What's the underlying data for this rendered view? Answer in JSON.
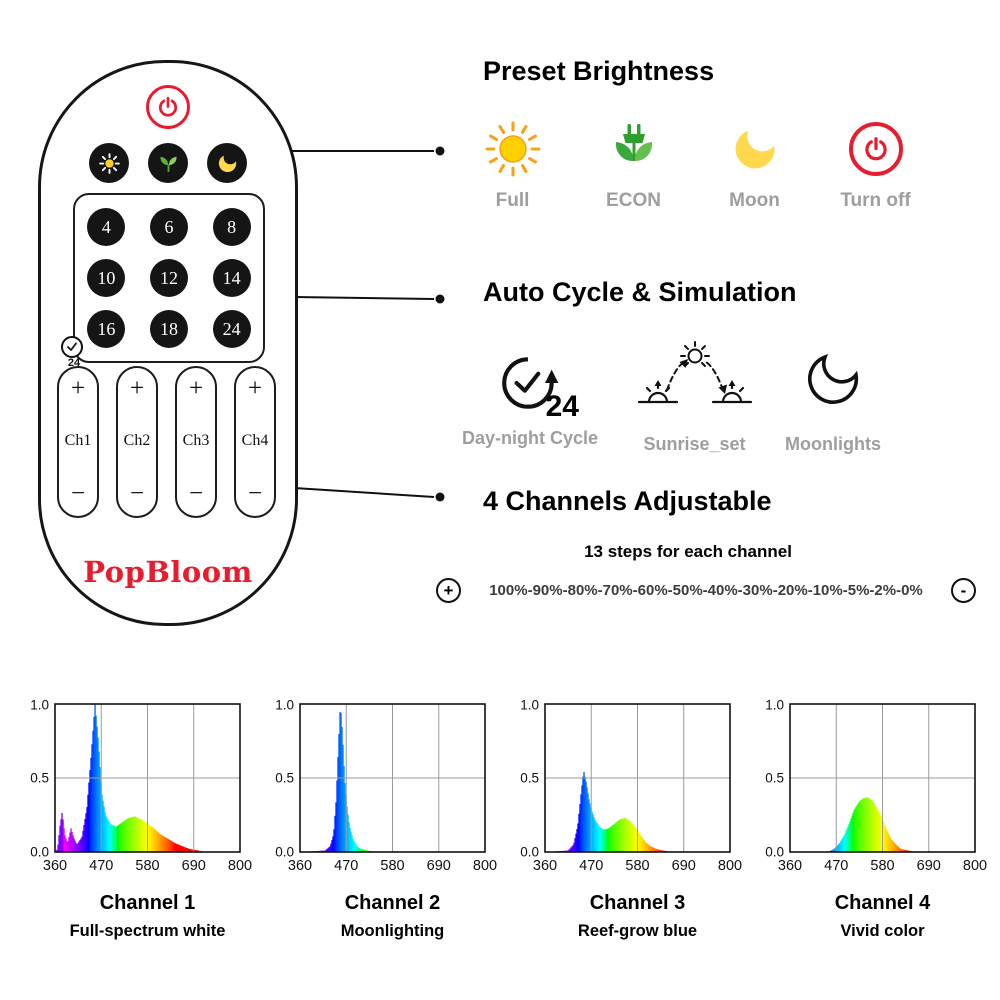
{
  "colors": {
    "brand_red": "#e81c2e",
    "sun_yellow": "#ffd100",
    "econ_green": "#3aa83a",
    "moon_yellow": "#ffd84d",
    "label_gray": "#9e9e9e"
  },
  "remote": {
    "brand": "PopBloom",
    "power_icon": "power-icon",
    "mode_icons": [
      "sun-icon",
      "plant-icon",
      "moon-icon"
    ],
    "number_buttons": [
      "4",
      "6",
      "8",
      "10",
      "12",
      "14",
      "16",
      "18",
      "24"
    ],
    "clock_label": "24",
    "plus": "+",
    "minus": "−",
    "channel_labels": [
      "Ch1",
      "Ch2",
      "Ch3",
      "Ch4"
    ]
  },
  "sections": {
    "preset": {
      "title": "Preset Brightness",
      "items": [
        {
          "icon": "sun-icon",
          "label": "Full"
        },
        {
          "icon": "econ-plant-icon",
          "label": "ECON"
        },
        {
          "icon": "moon-icon",
          "label": "Moon"
        },
        {
          "icon": "power-icon",
          "label": "Turn off"
        }
      ]
    },
    "auto": {
      "title": "Auto Cycle & Simulation",
      "badge": "24",
      "items": [
        {
          "icon": "clock-24-icon",
          "label": "Day-night Cycle"
        },
        {
          "icon": "sunrise-set-icon",
          "label": "Sunrise_set"
        },
        {
          "icon": "moon-outline-icon",
          "label": "Moonlights"
        }
      ]
    },
    "channels": {
      "title": "4 Channels Adjustable",
      "subtitle": "13 steps for each channel",
      "plus": "+",
      "steps": "100%-90%-80%-70%-60%-50%-40%-30%-20%-10%-5%-2%-0%",
      "minus": "-"
    }
  },
  "chart_data": [
    {
      "type": "area",
      "title": "Channel 1",
      "subtitle": "Full-spectrum white",
      "xlim": [
        360,
        800
      ],
      "ylim": [
        0,
        1
      ],
      "x_ticks": [
        "360",
        "470",
        "580",
        "690",
        "800"
      ],
      "y_ticks": [
        "1.0",
        "0.5",
        "0.0"
      ],
      "grid": true,
      "points": [
        [
          360,
          0
        ],
        [
          366,
          0.02
        ],
        [
          372,
          0.18
        ],
        [
          377,
          0.27
        ],
        [
          383,
          0.12
        ],
        [
          390,
          0.06
        ],
        [
          398,
          0.16
        ],
        [
          404,
          0.1
        ],
        [
          412,
          0.05
        ],
        [
          424,
          0.1
        ],
        [
          436,
          0.3
        ],
        [
          446,
          0.65
        ],
        [
          455,
          1.0
        ],
        [
          463,
          0.75
        ],
        [
          471,
          0.4
        ],
        [
          480,
          0.25
        ],
        [
          492,
          0.19
        ],
        [
          505,
          0.17
        ],
        [
          520,
          0.2
        ],
        [
          535,
          0.23
        ],
        [
          550,
          0.24
        ],
        [
          565,
          0.22
        ],
        [
          580,
          0.19
        ],
        [
          595,
          0.16
        ],
        [
          610,
          0.12
        ],
        [
          628,
          0.09
        ],
        [
          645,
          0.06
        ],
        [
          662,
          0.04
        ],
        [
          680,
          0.02
        ],
        [
          700,
          0.01
        ],
        [
          715,
          0
        ],
        [
          800,
          0
        ]
      ]
    },
    {
      "type": "area",
      "title": "Channel 2",
      "subtitle": "Moonlighting",
      "xlim": [
        360,
        800
      ],
      "ylim": [
        0,
        1
      ],
      "x_ticks": [
        "360",
        "470",
        "580",
        "690",
        "800"
      ],
      "y_ticks": [
        "1.0",
        "0.5",
        "0.0"
      ],
      "grid": true,
      "points": [
        [
          360,
          0
        ],
        [
          420,
          0.01
        ],
        [
          432,
          0.04
        ],
        [
          440,
          0.12
        ],
        [
          446,
          0.35
        ],
        [
          452,
          0.75
        ],
        [
          456,
          1.0
        ],
        [
          461,
          0.8
        ],
        [
          466,
          0.5
        ],
        [
          472,
          0.3
        ],
        [
          478,
          0.17
        ],
        [
          486,
          0.09
        ],
        [
          495,
          0.04
        ],
        [
          505,
          0.02
        ],
        [
          520,
          0.01
        ],
        [
          540,
          0
        ],
        [
          800,
          0
        ]
      ]
    },
    {
      "type": "area",
      "title": "Channel 3",
      "subtitle": "Reef-grow blue",
      "xlim": [
        360,
        800
      ],
      "ylim": [
        0,
        1
      ],
      "x_ticks": [
        "360",
        "470",
        "580",
        "690",
        "800"
      ],
      "y_ticks": [
        "1.0",
        "0.5",
        "0.0"
      ],
      "grid": true,
      "points": [
        [
          360,
          0
        ],
        [
          415,
          0.01
        ],
        [
          428,
          0.05
        ],
        [
          438,
          0.18
        ],
        [
          446,
          0.4
        ],
        [
          452,
          0.55
        ],
        [
          458,
          0.47
        ],
        [
          465,
          0.35
        ],
        [
          472,
          0.27
        ],
        [
          480,
          0.21
        ],
        [
          490,
          0.17
        ],
        [
          500,
          0.15
        ],
        [
          512,
          0.16
        ],
        [
          525,
          0.19
        ],
        [
          538,
          0.22
        ],
        [
          550,
          0.23
        ],
        [
          562,
          0.21
        ],
        [
          574,
          0.17
        ],
        [
          586,
          0.12
        ],
        [
          598,
          0.07
        ],
        [
          610,
          0.04
        ],
        [
          625,
          0.02
        ],
        [
          640,
          0.01
        ],
        [
          660,
          0
        ],
        [
          800,
          0
        ]
      ]
    },
    {
      "type": "area",
      "title": "Channel 4",
      "subtitle": "Vivid color",
      "xlim": [
        360,
        800
      ],
      "ylim": [
        0,
        1
      ],
      "x_ticks": [
        "360",
        "470",
        "580",
        "690",
        "800"
      ],
      "y_ticks": [
        "1.0",
        "0.5",
        "0.0"
      ],
      "grid": true,
      "points": [
        [
          360,
          0
        ],
        [
          450,
          0
        ],
        [
          465,
          0.02
        ],
        [
          478,
          0.06
        ],
        [
          490,
          0.12
        ],
        [
          502,
          0.2
        ],
        [
          512,
          0.28
        ],
        [
          522,
          0.33
        ],
        [
          532,
          0.36
        ],
        [
          545,
          0.37
        ],
        [
          558,
          0.34
        ],
        [
          570,
          0.28
        ],
        [
          580,
          0.22
        ],
        [
          590,
          0.15
        ],
        [
          600,
          0.09
        ],
        [
          612,
          0.05
        ],
        [
          624,
          0.02
        ],
        [
          640,
          0.01
        ],
        [
          660,
          0
        ],
        [
          800,
          0
        ]
      ]
    }
  ]
}
